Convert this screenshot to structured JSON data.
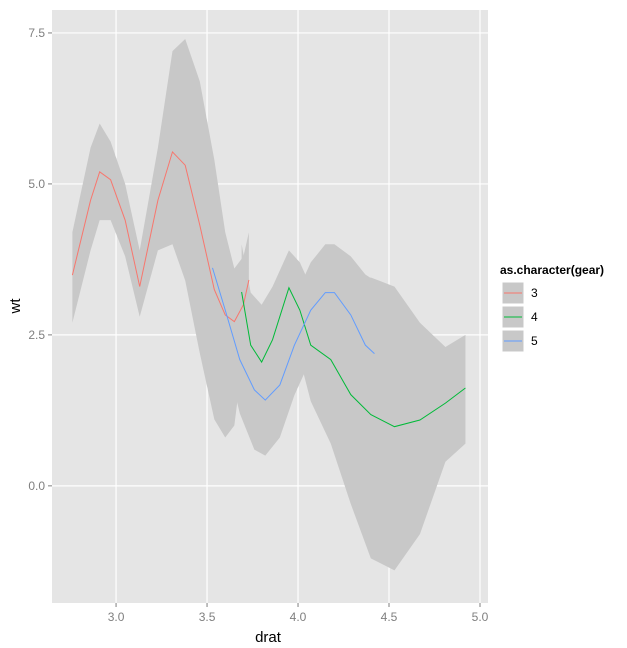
{
  "chart_data": {
    "type": "line",
    "xlabel": "drat",
    "ylabel": "wt",
    "legend_title": "as.character(gear)",
    "legend": "right",
    "xlim": [
      2.648,
      5.044
    ],
    "ylim": [
      -1.94,
      7.88
    ],
    "xticks": [
      {
        "value": 3,
        "label": "3.0"
      },
      {
        "value": 3.5,
        "label": "3.5"
      },
      {
        "value": 4,
        "label": "4.0"
      },
      {
        "value": 4.5,
        "label": "4.5"
      },
      {
        "value": 5,
        "label": "5.0"
      }
    ],
    "yticks": [
      {
        "value": 0,
        "label": "0.0"
      },
      {
        "value": 2.5,
        "label": "2.5"
      },
      {
        "value": 5,
        "label": "5.0"
      },
      {
        "value": 7.5,
        "label": "7.5"
      }
    ],
    "grid": true,
    "ribbon_color": "#c8c8c8",
    "series": [
      {
        "name": "3",
        "color": "#f8766d",
        "x": [
          2.76,
          2.86,
          2.91,
          2.97,
          3.05,
          3.13,
          3.23,
          3.31,
          3.38,
          3.46,
          3.54,
          3.6,
          3.65,
          3.7,
          3.73
        ],
        "values": [
          3.49,
          4.73,
          5.2,
          5.07,
          4.4,
          3.3,
          4.73,
          5.53,
          5.31,
          4.32,
          3.25,
          2.83,
          2.72,
          3.0,
          3.41
        ],
        "upper": [
          4.2,
          5.6,
          6.0,
          5.7,
          5.0,
          3.9,
          5.6,
          7.2,
          7.4,
          6.7,
          5.4,
          4.2,
          3.6,
          3.8,
          4.2
        ],
        "lower": [
          2.7,
          3.9,
          4.4,
          4.4,
          3.8,
          2.8,
          3.9,
          4.0,
          3.4,
          2.2,
          1.1,
          0.8,
          1.0,
          2.2,
          3.0
        ]
      },
      {
        "name": "4",
        "color": "#00ba38",
        "x": [
          3.69,
          3.74,
          3.8,
          3.86,
          3.95,
          4.01,
          4.07,
          4.18,
          4.29,
          4.4,
          4.53,
          4.67,
          4.81,
          4.92
        ],
        "values": [
          3.21,
          2.33,
          2.05,
          2.42,
          3.28,
          2.91,
          2.33,
          2.09,
          1.51,
          1.18,
          0.98,
          1.09,
          1.37,
          1.62
        ],
        "upper": [
          4.0,
          3.2,
          3.0,
          3.3,
          3.9,
          3.7,
          3.3,
          3.3,
          3.3,
          3.45,
          3.3,
          2.7,
          2.3,
          2.5
        ],
        "lower": [
          2.4,
          1.4,
          1.1,
          1.5,
          2.6,
          2.1,
          1.4,
          0.7,
          -0.3,
          -1.2,
          -1.4,
          -0.8,
          0.4,
          0.7
        ]
      },
      {
        "name": "5",
        "color": "#619cff",
        "x": [
          3.53,
          3.6,
          3.68,
          3.76,
          3.82,
          3.9,
          3.98,
          4.07,
          4.15,
          4.2,
          4.29,
          4.37,
          4.42
        ],
        "values": [
          3.61,
          2.91,
          2.09,
          1.59,
          1.42,
          1.67,
          2.33,
          2.91,
          3.2,
          3.2,
          2.83,
          2.33,
          2.19
        ],
        "upper": [
          4.0,
          3.6,
          3.0,
          2.6,
          2.4,
          2.6,
          3.1,
          3.7,
          4.0,
          4.0,
          3.8,
          3.5,
          3.4
        ],
        "lower": [
          3.2,
          2.2,
          1.2,
          0.6,
          0.5,
          0.8,
          1.5,
          2.1,
          2.4,
          2.4,
          1.9,
          1.2,
          1.0
        ]
      }
    ]
  }
}
